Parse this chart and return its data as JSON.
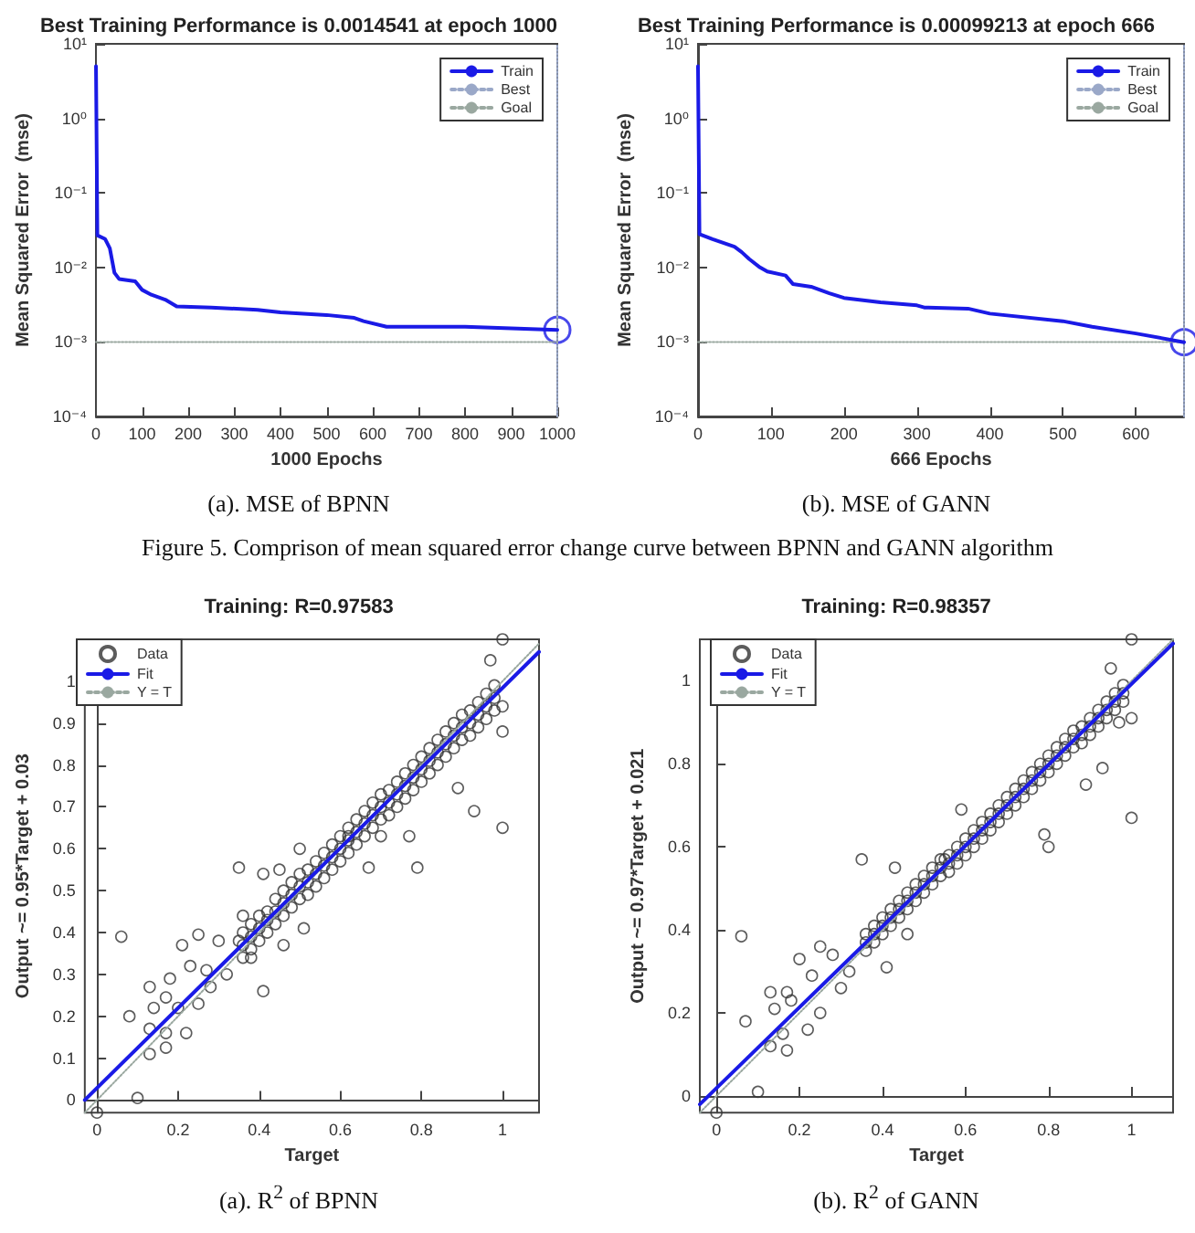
{
  "chart_data": [
    {
      "type": "line",
      "title": "Best Training Performance is 0.0014541 at epoch 1000",
      "xlabel": "1000 Epochs",
      "ylabel": "Mean Squared Error  (mse)",
      "annotations": [
        "(a). MSE of BPNN"
      ],
      "log": "y",
      "legend": "top right",
      "xlim": [
        0,
        1000
      ],
      "xticks": [
        0,
        100,
        200,
        300,
        400,
        500,
        600,
        700,
        800,
        900,
        1000
      ],
      "ylim": [
        0.0001,
        10
      ],
      "yticks": [
        {
          "value": 0.0001,
          "label": "10⁻⁴"
        },
        {
          "value": 0.001,
          "label": "10⁻³"
        },
        {
          "value": 0.01,
          "label": "10⁻²"
        },
        {
          "value": 0.1,
          "label": "10⁻¹"
        },
        {
          "value": 1,
          "label": "10⁰"
        },
        {
          "value": 10,
          "label": "10¹"
        }
      ],
      "series": [
        {
          "name": "Train",
          "color": "#1a1ae6",
          "marker": "none",
          "x": [
            0,
            3,
            20,
            30,
            40,
            50,
            85,
            100,
            120,
            150,
            175,
            250,
            350,
            400,
            500,
            560,
            580,
            630,
            800,
            1000
          ],
          "values": [
            5,
            0.027,
            0.024,
            0.018,
            0.0085,
            0.007,
            0.0065,
            0.005,
            0.0043,
            0.0037,
            0.003,
            0.0029,
            0.0027,
            0.0025,
            0.0023,
            0.0021,
            0.0019,
            0.0016,
            0.0016,
            0.0014541
          ]
        },
        {
          "name": "Best",
          "color": "#9aa8c8",
          "marker": "none",
          "line_style": "dotted",
          "x": [
            1000,
            1000
          ],
          "values": [
            0.0001,
            10
          ]
        },
        {
          "name": "Goal",
          "color": "#9aa8a0",
          "marker": "none",
          "line_style": "dotted",
          "x": [
            0,
            1000
          ],
          "values": [
            0.001,
            0.001
          ]
        },
        {
          "type": "scatter",
          "color": "#1a1ae6",
          "marker": "circle",
          "x": [
            1000
          ],
          "values": [
            0.0014541
          ]
        }
      ]
    },
    {
      "type": "line",
      "title": "Best Training Performance is 0.00099213 at epoch 666",
      "xlabel": "666 Epochs",
      "ylabel": "Mean Squared Error  (mse)",
      "annotations": [
        "(b). MSE of GANN",
        "Figure 5. Comprison of mean squared error change curve between BPNN and GANN algorithm"
      ],
      "log": "y",
      "legend": "top right",
      "xlim": [
        0,
        666
      ],
      "xticks": [
        0,
        100,
        200,
        300,
        400,
        500,
        600
      ],
      "ylim": [
        0.0001,
        10
      ],
      "yticks": [
        {
          "value": 0.0001,
          "label": "10⁻⁴"
        },
        {
          "value": 0.001,
          "label": "10⁻³"
        },
        {
          "value": 0.01,
          "label": "10⁻²"
        },
        {
          "value": 0.1,
          "label": "10⁻¹"
        },
        {
          "value": 1,
          "label": "10⁰"
        },
        {
          "value": 10,
          "label": "10¹"
        }
      ],
      "series": [
        {
          "name": "Train",
          "color": "#1a1ae6",
          "marker": "none",
          "x": [
            0,
            2,
            20,
            50,
            60,
            70,
            85,
            95,
            120,
            130,
            155,
            180,
            200,
            250,
            300,
            310,
            370,
            400,
            500,
            540,
            600,
            666
          ],
          "values": [
            5,
            0.028,
            0.024,
            0.019,
            0.016,
            0.013,
            0.01,
            0.0088,
            0.0078,
            0.006,
            0.0055,
            0.0045,
            0.0039,
            0.0034,
            0.0031,
            0.0029,
            0.0028,
            0.0024,
            0.0019,
            0.0016,
            0.0013,
            0.00099213
          ]
        },
        {
          "name": "Best",
          "color": "#9aa8c8",
          "marker": "none",
          "line_style": "dotted",
          "x": [
            666,
            666
          ],
          "values": [
            0.0001,
            10
          ]
        },
        {
          "name": "Goal",
          "color": "#9aa8a0",
          "marker": "none",
          "line_style": "dotted",
          "x": [
            0,
            666
          ],
          "values": [
            0.001,
            0.001
          ]
        },
        {
          "type": "scatter",
          "color": "#1a1ae6",
          "marker": "circle",
          "x": [
            666
          ],
          "values": [
            0.00099213
          ]
        }
      ]
    },
    {
      "type": "scatter",
      "title": "Training: R=0.97583",
      "xlabel": "Target",
      "ylabel": "Output ~= 0.95*Target + 0.03",
      "annotations": [
        "(a).  R$^{2}$ of BPNN"
      ],
      "legend": "top left",
      "xlim": [
        -0.03,
        1.09
      ],
      "xticks": [
        0,
        0.2,
        0.4,
        0.6,
        0.8,
        1
      ],
      "ylim": [
        -0.03,
        1.1
      ],
      "yticks": [
        0,
        0.1,
        0.2,
        0.3,
        0.4,
        0.5,
        0.6,
        0.7,
        0.8,
        0.9,
        1
      ],
      "series": [
        {
          "name": "Data",
          "color": "#333333",
          "marker": "circle",
          "x": [
            0.36,
            0.36,
            0.36,
            0.38,
            0.38,
            0.38,
            0.4,
            0.4,
            0.4,
            0.42,
            0.42,
            0.42,
            0.44,
            0.44,
            0.44,
            0.46,
            0.46,
            0.46,
            0.48,
            0.48,
            0.48,
            0.5,
            0.5,
            0.5,
            0.52,
            0.52,
            0.52,
            0.54,
            0.54,
            0.54,
            0.56,
            0.56,
            0.56,
            0.58,
            0.58,
            0.58,
            0.6,
            0.6,
            0.6,
            0.62,
            0.62,
            0.62,
            0.64,
            0.64,
            0.64,
            0.66,
            0.66,
            0.66,
            0.68,
            0.68,
            0.68,
            0.7,
            0.7,
            0.7,
            0.72,
            0.72,
            0.72,
            0.74,
            0.74,
            0.74,
            0.76,
            0.76,
            0.76,
            0.78,
            0.78,
            0.78,
            0.8,
            0.8,
            0.8,
            0.82,
            0.82,
            0.82,
            0.84,
            0.84,
            0.84,
            0.86,
            0.86,
            0.86,
            0.88,
            0.88,
            0.88,
            0.9,
            0.9,
            0.9,
            0.92,
            0.92,
            0.92,
            0.94,
            0.94,
            0.94,
            0.96,
            0.96,
            0.96,
            0.98,
            0.98,
            0.98,
            0.06,
            0.08,
            0,
            0.1,
            0.13,
            0.13,
            0.13,
            0.14,
            0.17,
            0.17,
            0.17,
            0.18,
            0.21,
            0.22,
            0.25,
            0.25,
            0.3,
            0.35,
            0.41,
            0.46,
            0.5,
            0.51,
            0.67,
            0.77,
            0.79,
            0.89,
            0.93,
            1,
            1,
            1,
            0.97,
            1,
            0.35,
            0.2,
            0.23,
            0.27,
            0.28,
            0.32,
            0.36,
            0.41,
            0.45,
            0.62,
            0.7,
            0.38
          ],
          "values": [
            0.34,
            0.37,
            0.4,
            0.36,
            0.39,
            0.42,
            0.38,
            0.41,
            0.44,
            0.4,
            0.43,
            0.45,
            0.42,
            0.45,
            0.48,
            0.44,
            0.47,
            0.5,
            0.46,
            0.49,
            0.52,
            0.48,
            0.51,
            0.54,
            0.49,
            0.52,
            0.55,
            0.51,
            0.54,
            0.57,
            0.53,
            0.56,
            0.59,
            0.55,
            0.58,
            0.61,
            0.57,
            0.6,
            0.63,
            0.59,
            0.62,
            0.65,
            0.61,
            0.64,
            0.67,
            0.63,
            0.66,
            0.69,
            0.65,
            0.68,
            0.71,
            0.67,
            0.7,
            0.73,
            0.68,
            0.71,
            0.74,
            0.7,
            0.73,
            0.76,
            0.72,
            0.75,
            0.78,
            0.74,
            0.77,
            0.8,
            0.76,
            0.79,
            0.82,
            0.78,
            0.81,
            0.84,
            0.8,
            0.83,
            0.86,
            0.82,
            0.85,
            0.88,
            0.84,
            0.87,
            0.9,
            0.86,
            0.89,
            0.92,
            0.87,
            0.9,
            0.93,
            0.89,
            0.92,
            0.95,
            0.91,
            0.94,
            0.97,
            0.93,
            0.96,
            0.99,
            0.39,
            0.2,
            -0.03,
            0.005,
            0.27,
            0.17,
            0.11,
            0.22,
            0.245,
            0.16,
            0.125,
            0.29,
            0.37,
            0.16,
            0.395,
            0.23,
            0.38,
            0.555,
            0.26,
            0.37,
            0.6,
            0.41,
            0.555,
            0.63,
            0.555,
            0.745,
            0.69,
            0.65,
            0.88,
            1.1,
            1.05,
            0.94,
            0.38,
            0.22,
            0.32,
            0.31,
            0.27,
            0.3,
            0.44,
            0.54,
            0.55,
            0.63,
            0.63,
            0.34
          ]
        },
        {
          "name": "Fit",
          "type": "line",
          "color": "#1a1ae6",
          "marker": "none",
          "x": [
            -0.03,
            1.09
          ],
          "values": [
            0,
            1.07
          ]
        },
        {
          "name": "Y = T",
          "type": "line",
          "color": "#9aa8a0",
          "marker": "none",
          "line_style": "dotted",
          "x": [
            -0.03,
            1.09
          ],
          "values": [
            -0.03,
            1.09
          ]
        }
      ]
    },
    {
      "type": "scatter",
      "title": "Training: R=0.98357",
      "xlabel": "Target",
      "ylabel": "Output ~= 0.97*Target + 0.021",
      "annotations": [
        "(b).  R$^{2}$ of GANN"
      ],
      "legend": "top left",
      "xlim": [
        -0.04,
        1.1
      ],
      "xticks": [
        0,
        0.2,
        0.4,
        0.6,
        0.8,
        1
      ],
      "ylim": [
        -0.04,
        1.1
      ],
      "yticks": [
        0,
        0.2,
        0.4,
        0.6,
        0.8,
        1
      ],
      "series": [
        {
          "name": "Data",
          "color": "#333333",
          "marker": "circle",
          "x": [
            0.36,
            0.36,
            0.36,
            0.38,
            0.38,
            0.38,
            0.4,
            0.4,
            0.4,
            0.42,
            0.42,
            0.42,
            0.44,
            0.44,
            0.44,
            0.46,
            0.46,
            0.46,
            0.48,
            0.48,
            0.48,
            0.5,
            0.5,
            0.5,
            0.52,
            0.52,
            0.52,
            0.54,
            0.54,
            0.54,
            0.56,
            0.56,
            0.56,
            0.58,
            0.58,
            0.58,
            0.6,
            0.6,
            0.6,
            0.62,
            0.62,
            0.62,
            0.64,
            0.64,
            0.64,
            0.66,
            0.66,
            0.66,
            0.68,
            0.68,
            0.68,
            0.7,
            0.7,
            0.7,
            0.72,
            0.72,
            0.72,
            0.74,
            0.74,
            0.74,
            0.76,
            0.76,
            0.76,
            0.78,
            0.78,
            0.78,
            0.8,
            0.8,
            0.8,
            0.82,
            0.82,
            0.82,
            0.84,
            0.84,
            0.84,
            0.86,
            0.86,
            0.86,
            0.88,
            0.88,
            0.88,
            0.9,
            0.9,
            0.9,
            0.92,
            0.92,
            0.92,
            0.94,
            0.94,
            0.94,
            0.96,
            0.96,
            0.96,
            0.98,
            0.98,
            0.98,
            0.06,
            0.07,
            0,
            0.1,
            0.13,
            0.13,
            0.14,
            0.16,
            0.17,
            0.17,
            0.18,
            0.2,
            0.22,
            0.23,
            0.25,
            0.25,
            0.35,
            0.41,
            0.43,
            0.46,
            0.55,
            0.59,
            0.79,
            0.8,
            0.89,
            0.93,
            1,
            1,
            1,
            0.97,
            0.95,
            0.3,
            0.28,
            0.32
          ],
          "values": [
            0.35,
            0.37,
            0.39,
            0.37,
            0.39,
            0.41,
            0.39,
            0.41,
            0.43,
            0.41,
            0.43,
            0.45,
            0.43,
            0.45,
            0.47,
            0.45,
            0.47,
            0.49,
            0.47,
            0.49,
            0.51,
            0.49,
            0.51,
            0.53,
            0.51,
            0.53,
            0.55,
            0.53,
            0.55,
            0.57,
            0.54,
            0.56,
            0.58,
            0.56,
            0.58,
            0.6,
            0.58,
            0.6,
            0.62,
            0.6,
            0.62,
            0.64,
            0.62,
            0.64,
            0.66,
            0.64,
            0.66,
            0.68,
            0.66,
            0.68,
            0.7,
            0.68,
            0.7,
            0.72,
            0.7,
            0.72,
            0.74,
            0.72,
            0.74,
            0.76,
            0.74,
            0.76,
            0.78,
            0.76,
            0.78,
            0.8,
            0.78,
            0.8,
            0.82,
            0.8,
            0.82,
            0.84,
            0.82,
            0.84,
            0.86,
            0.84,
            0.86,
            0.88,
            0.85,
            0.87,
            0.89,
            0.87,
            0.89,
            0.91,
            0.89,
            0.91,
            0.93,
            0.91,
            0.93,
            0.95,
            0.93,
            0.95,
            0.97,
            0.95,
            0.97,
            0.99,
            0.385,
            0.18,
            -0.04,
            0.01,
            0.25,
            0.12,
            0.21,
            0.15,
            0.11,
            0.25,
            0.23,
            0.33,
            0.16,
            0.29,
            0.2,
            0.36,
            0.57,
            0.31,
            0.55,
            0.39,
            0.57,
            0.69,
            0.63,
            0.6,
            0.75,
            0.79,
            0.67,
            0.91,
            1.1,
            0.9,
            1.03,
            0.26,
            0.34,
            0.3
          ]
        },
        {
          "name": "Fit",
          "type": "line",
          "color": "#1a1ae6",
          "marker": "none",
          "x": [
            -0.04,
            1.1
          ],
          "values": [
            -0.02,
            1.09
          ]
        },
        {
          "name": "Y = T",
          "type": "line",
          "color": "#9aa8a0",
          "marker": "none",
          "line_style": "dotted",
          "x": [
            -0.04,
            1.1
          ],
          "values": [
            -0.04,
            1.1
          ]
        }
      ]
    }
  ]
}
